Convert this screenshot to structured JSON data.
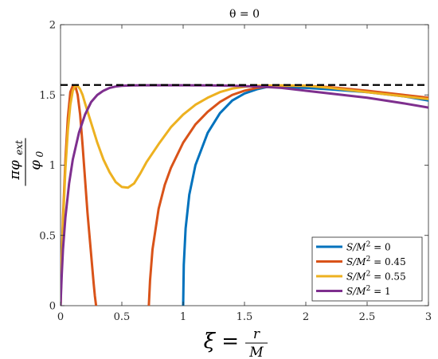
{
  "chart_data": {
    "type": "line",
    "title": "θ = 0",
    "xlabel": "ξ = r / M",
    "xlabel_parts": {
      "lhs": "ξ =",
      "num": "r",
      "den": "M"
    },
    "ylabel": "π φ_ext / φ_0",
    "ylabel_parts": {
      "num": "πφ",
      "num_sub": "ext",
      "den": "φ",
      "den_sub": "0"
    },
    "xlim": [
      0,
      3
    ],
    "ylim": [
      0,
      2
    ],
    "xticks": [
      0,
      0.5,
      1,
      1.5,
      2,
      2.5,
      3
    ],
    "xtick_labels": [
      "0",
      "0.5",
      "1",
      "1.5",
      "2",
      "2.5",
      "3"
    ],
    "yticks": [
      0,
      0.5,
      1,
      1.5,
      2
    ],
    "ytick_labels": [
      "0",
      "0.5",
      "1",
      "1.5",
      "2"
    ],
    "grid": false,
    "legend_position": "bottom-right",
    "reference_line": {
      "y": 1.5708,
      "style": "dashed",
      "color": "#000000"
    },
    "series": [
      {
        "name": "S/M² = 0",
        "label": {
          "s": "S/M",
          "sup": "2",
          "rest": " = 0"
        },
        "color": "#0072BD",
        "x": [
          1.0,
          1.005,
          1.02,
          1.05,
          1.1,
          1.2,
          1.3,
          1.4,
          1.5,
          1.6,
          1.7,
          1.75,
          1.8,
          2.0,
          2.2,
          2.5,
          2.8,
          3.0
        ],
        "y": [
          0.0,
          0.29,
          0.55,
          0.79,
          1.0,
          1.23,
          1.37,
          1.46,
          1.51,
          1.54,
          1.56,
          1.56,
          1.558,
          1.55,
          1.54,
          1.52,
          1.49,
          1.46
        ]
      },
      {
        "name": "S/M² = 0.45",
        "label": {
          "s": "S/M",
          "sup": "2",
          "rest": " = 0.45"
        },
        "color": "#D95319",
        "x": [
          0.0,
          0.01,
          0.02,
          0.04,
          0.06,
          0.08,
          0.1,
          0.12,
          0.14,
          0.16,
          0.18,
          0.2,
          0.22,
          0.24,
          0.26,
          0.27,
          0.28,
          0.29,
          0.72,
          0.73,
          0.75,
          0.8,
          0.85,
          0.9,
          1.0,
          1.1,
          1.2,
          1.3,
          1.4,
          1.5,
          1.6,
          1.7,
          1.8,
          2.0,
          2.2,
          2.5,
          2.8,
          3.0
        ],
        "y": [
          0.0,
          0.33,
          0.62,
          1.04,
          1.34,
          1.52,
          1.565,
          1.565,
          1.5,
          1.36,
          1.14,
          0.9,
          0.66,
          0.46,
          0.26,
          0.16,
          0.07,
          0.0,
          0.0,
          0.18,
          0.4,
          0.69,
          0.86,
          0.98,
          1.16,
          1.29,
          1.38,
          1.45,
          1.5,
          1.53,
          1.55,
          1.56,
          1.565,
          1.565,
          1.555,
          1.53,
          1.5,
          1.48
        ]
      },
      {
        "name": "S/M² = 0.55",
        "label": {
          "s": "S/M",
          "sup": "2",
          "rest": " = 0.55"
        },
        "color": "#EDB120",
        "x": [
          0.0,
          0.01,
          0.02,
          0.04,
          0.06,
          0.08,
          0.1,
          0.12,
          0.14,
          0.16,
          0.18,
          0.2,
          0.25,
          0.3,
          0.35,
          0.4,
          0.45,
          0.5,
          0.55,
          0.6,
          0.65,
          0.7,
          0.8,
          0.9,
          1.0,
          1.1,
          1.2,
          1.3,
          1.4,
          1.5,
          1.6,
          1.8,
          2.0,
          2.2,
          2.5,
          2.8,
          3.0
        ],
        "y": [
          0.0,
          0.33,
          0.58,
          0.98,
          1.25,
          1.43,
          1.53,
          1.565,
          1.565,
          1.54,
          1.5,
          1.44,
          1.3,
          1.16,
          1.04,
          0.95,
          0.88,
          0.845,
          0.84,
          0.87,
          0.94,
          1.02,
          1.15,
          1.27,
          1.36,
          1.43,
          1.48,
          1.52,
          1.545,
          1.558,
          1.565,
          1.568,
          1.565,
          1.55,
          1.52,
          1.49,
          1.47
        ]
      },
      {
        "name": "S/M² = 1",
        "label": {
          "s": "S/M",
          "sup": "2",
          "rest": " = 1"
        },
        "color": "#7E2F8E",
        "x": [
          0.0,
          0.01,
          0.02,
          0.04,
          0.07,
          0.1,
          0.15,
          0.2,
          0.25,
          0.3,
          0.35,
          0.4,
          0.45,
          0.5,
          0.6,
          0.7,
          0.8,
          1.0,
          1.2,
          1.4,
          1.6,
          1.8,
          2.0,
          2.2,
          2.5,
          2.8,
          3.0
        ],
        "y": [
          0.0,
          0.22,
          0.4,
          0.63,
          0.87,
          1.04,
          1.23,
          1.36,
          1.45,
          1.5,
          1.53,
          1.55,
          1.56,
          1.565,
          1.568,
          1.569,
          1.569,
          1.569,
          1.568,
          1.565,
          1.56,
          1.55,
          1.53,
          1.51,
          1.48,
          1.44,
          1.41
        ]
      }
    ]
  }
}
